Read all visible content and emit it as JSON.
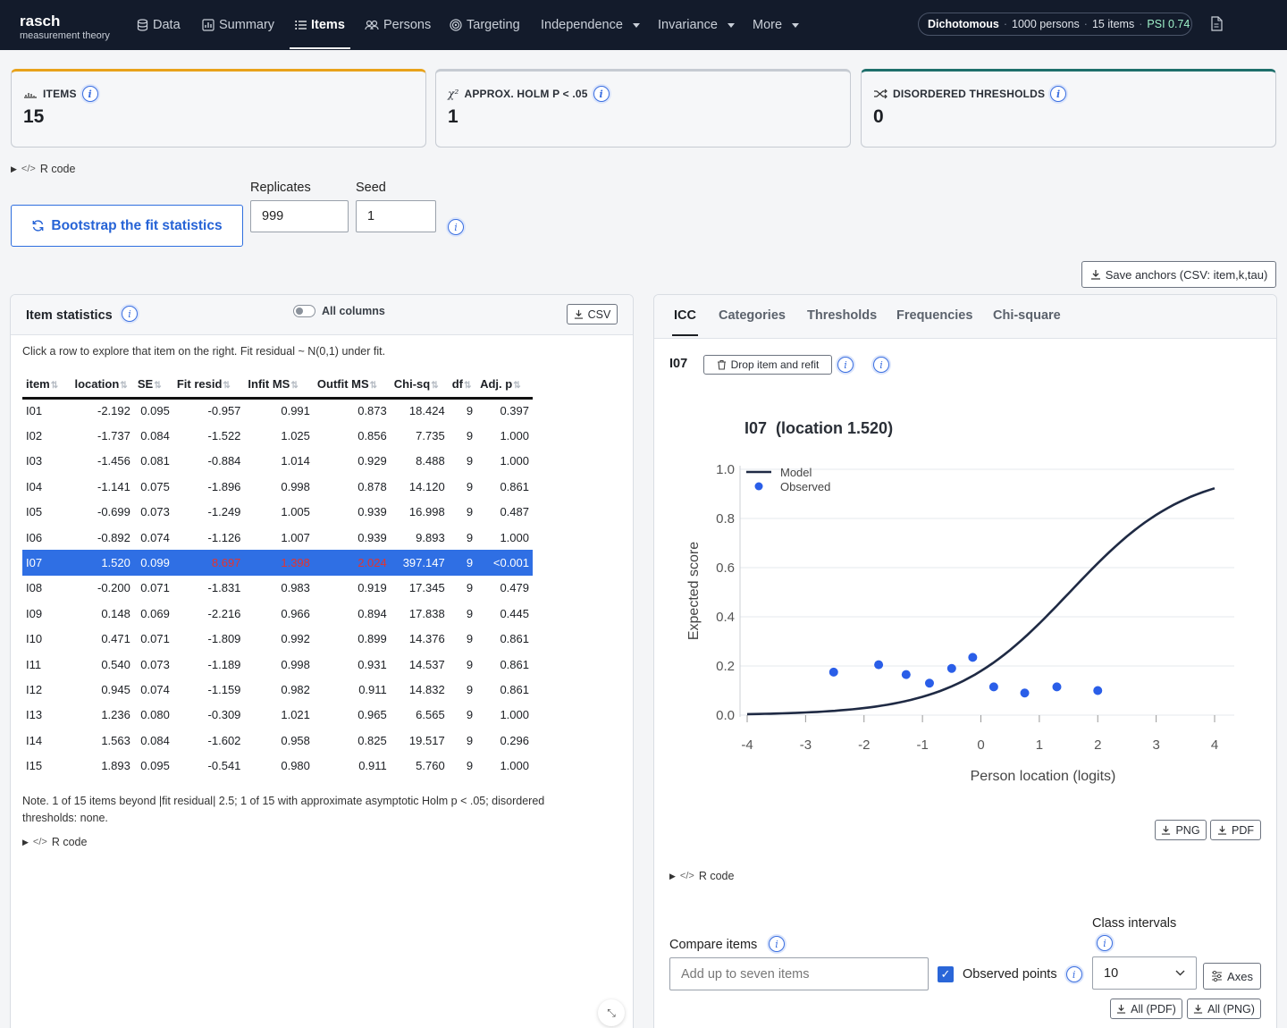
{
  "brand": {
    "name": "rasch",
    "subtitle": "measurement theory"
  },
  "nav": {
    "items": [
      {
        "label": "Data",
        "icon": "database-icon"
      },
      {
        "label": "Summary",
        "icon": "summary-icon"
      },
      {
        "label": "Items",
        "icon": "list-icon",
        "active": true
      },
      {
        "label": "Persons",
        "icon": "persons-icon"
      },
      {
        "label": "Targeting",
        "icon": "target-icon"
      },
      {
        "label": "Independence",
        "dropdown": true
      },
      {
        "label": "Invariance",
        "dropdown": true
      },
      {
        "label": "More",
        "dropdown": true
      }
    ],
    "status": {
      "model": "Dichotomous",
      "persons": "1000 persons",
      "items": "15 items",
      "psi": "PSI 0.74"
    }
  },
  "kpis": [
    {
      "label": "ITEMS",
      "value": "15",
      "accent": "#e8a21a",
      "icon": "bar-chart-icon"
    },
    {
      "label": "APPROX. HOLM P < .05",
      "value": "1",
      "accent": "#c6cbd2",
      "icon": "chi-square-icon"
    },
    {
      "label": "DISORDERED THRESHOLDS",
      "value": "0",
      "accent": "#1e6f6b",
      "icon": "shuffle-icon"
    }
  ],
  "r_code_label": "R code",
  "bootstrap": {
    "button_label": "Bootstrap the fit statistics",
    "replicates_label": "Replicates",
    "replicates_value": "999",
    "seed_label": "Seed",
    "seed_value": "1"
  },
  "save_anchors_label": "Save anchors (CSV: item,k,tau)",
  "item_stats": {
    "title": "Item statistics",
    "toggle_label": "All columns",
    "csv_label": "CSV",
    "intro": "Click a row to explore that item on the right. Fit residual ~ N(0,1) under fit.",
    "columns": [
      "item",
      "location",
      "SE",
      "Fit resid",
      "Infit MS",
      "Outfit MS",
      "Chi-sq",
      "df",
      "Adj. p"
    ],
    "rows": [
      [
        "I01",
        "-2.192",
        "0.095",
        "-0.957",
        "0.991",
        "0.873",
        "18.424",
        "9",
        "0.397"
      ],
      [
        "I02",
        "-1.737",
        "0.084",
        "-1.522",
        "1.025",
        "0.856",
        "7.735",
        "9",
        "1.000"
      ],
      [
        "I03",
        "-1.456",
        "0.081",
        "-0.884",
        "1.014",
        "0.929",
        "8.488",
        "9",
        "1.000"
      ],
      [
        "I04",
        "-1.141",
        "0.075",
        "-1.896",
        "0.998",
        "0.878",
        "14.120",
        "9",
        "0.861"
      ],
      [
        "I05",
        "-0.699",
        "0.073",
        "-1.249",
        "1.005",
        "0.939",
        "16.998",
        "9",
        "0.487"
      ],
      [
        "I06",
        "-0.892",
        "0.074",
        "-1.126",
        "1.007",
        "0.939",
        "9.893",
        "9",
        "1.000"
      ],
      [
        "I07",
        "1.520",
        "0.099",
        "8.697",
        "1.398",
        "2.024",
        "397.147",
        "9",
        "<0.001"
      ],
      [
        "I08",
        "-0.200",
        "0.071",
        "-1.831",
        "0.983",
        "0.919",
        "17.345",
        "9",
        "0.479"
      ],
      [
        "I09",
        "0.148",
        "0.069",
        "-2.216",
        "0.966",
        "0.894",
        "17.838",
        "9",
        "0.445"
      ],
      [
        "I10",
        "0.471",
        "0.071",
        "-1.809",
        "0.992",
        "0.899",
        "14.376",
        "9",
        "0.861"
      ],
      [
        "I11",
        "0.540",
        "0.073",
        "-1.189",
        "0.998",
        "0.931",
        "14.537",
        "9",
        "0.861"
      ],
      [
        "I12",
        "0.945",
        "0.074",
        "-1.159",
        "0.982",
        "0.911",
        "14.832",
        "9",
        "0.861"
      ],
      [
        "I13",
        "1.236",
        "0.080",
        "-0.309",
        "1.021",
        "0.965",
        "6.565",
        "9",
        "1.000"
      ],
      [
        "I14",
        "1.563",
        "0.084",
        "-1.602",
        "0.958",
        "0.825",
        "19.517",
        "9",
        "0.296"
      ],
      [
        "I15",
        "1.893",
        "0.095",
        "-0.541",
        "0.980",
        "0.911",
        "5.760",
        "9",
        "1.000"
      ]
    ],
    "selected_row": 6,
    "note": "Note. 1 of 15 items beyond |fit residual| 2.5; 1 of 15 with approximate asymptotic Holm p < .05; disordered thresholds: none."
  },
  "right_panel": {
    "tabs": [
      "ICC",
      "Categories",
      "Thresholds",
      "Frequencies",
      "Chi-square"
    ],
    "active_tab": "ICC",
    "selected_item": "I07",
    "drop_label": "Drop item and refit",
    "png_label": "PNG",
    "pdf_label": "PDF",
    "compare_label": "Compare items",
    "compare_placeholder": "Add up to seven items",
    "observed_label": "Observed points",
    "class_label": "Class intervals",
    "class_value": "10",
    "axes_label": "Axes",
    "all_pdf_label": "All (PDF)",
    "all_png_label": "All (PNG)"
  },
  "chart_data": {
    "type": "line",
    "title": "I07  (location 1.520)",
    "xlabel": "Person location (logits)",
    "ylabel": "Expected score",
    "xlim": [
      -4,
      4
    ],
    "ylim": [
      0,
      1
    ],
    "xticks": [
      "-4",
      "-3",
      "-2",
      "-1",
      "0",
      "1",
      "2",
      "3",
      "4"
    ],
    "yticks": [
      "0.0",
      "0.2",
      "0.4",
      "0.6",
      "0.8",
      "1.0"
    ],
    "legend": "top-left",
    "grid": true,
    "location": 1.52,
    "series": [
      {
        "name": "Model",
        "type": "line",
        "color": "#1f2a44"
      },
      {
        "name": "Observed",
        "type": "scatter",
        "color": "#2a5ee8",
        "x": [
          -2.52,
          -1.75,
          -1.28,
          -0.88,
          -0.5,
          -0.14,
          0.22,
          0.75,
          1.3,
          2.0
        ],
        "y": [
          0.175,
          0.205,
          0.165,
          0.13,
          0.19,
          0.235,
          0.115,
          0.09,
          0.115,
          0.1
        ]
      }
    ]
  }
}
